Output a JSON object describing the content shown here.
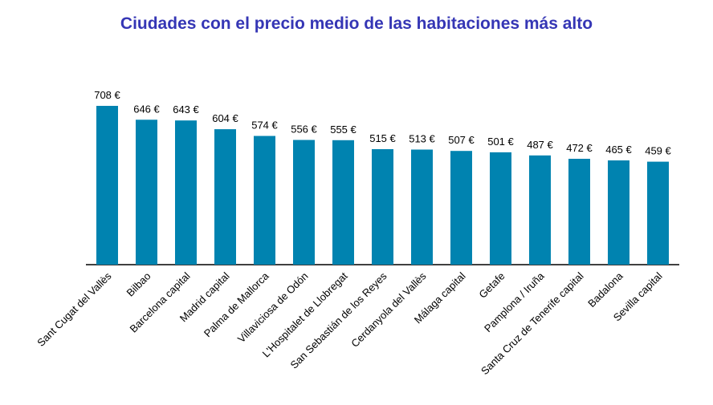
{
  "chart_data": {
    "type": "bar",
    "title": "Ciudades con el precio medio de las habitaciones más alto",
    "xlabel": "",
    "ylabel": "",
    "ylim": [
      0,
      708
    ],
    "grid": false,
    "legend": "none",
    "bar_color": "#0083b0",
    "title_color": "#3536b5",
    "categories": [
      "Sant Cugat del Vallès",
      "Bilbao",
      "Barcelona capital",
      "Madrid capital",
      "Palma de Mallorca",
      "Villaviciosa de Odón",
      "L'Hospitalet de Llobregat",
      "San Sebastián de los Reyes",
      "Cerdanyola del Vallès",
      "Málaga capital",
      "Getafe",
      "Pamplona / Iruña",
      "Santa Cruz de Tenerife capital",
      "Badalona",
      "Sevilla capital"
    ],
    "values": [
      708,
      646,
      643,
      604,
      574,
      556,
      555,
      515,
      513,
      507,
      501,
      487,
      472,
      465,
      459
    ],
    "value_labels": [
      "708 €",
      "646 €",
      "643 €",
      "604 €",
      "574 €",
      "556 €",
      "555 €",
      "515 €",
      "513 €",
      "507 €",
      "501 €",
      "487 €",
      "472 €",
      "465 €",
      "459 €"
    ]
  }
}
